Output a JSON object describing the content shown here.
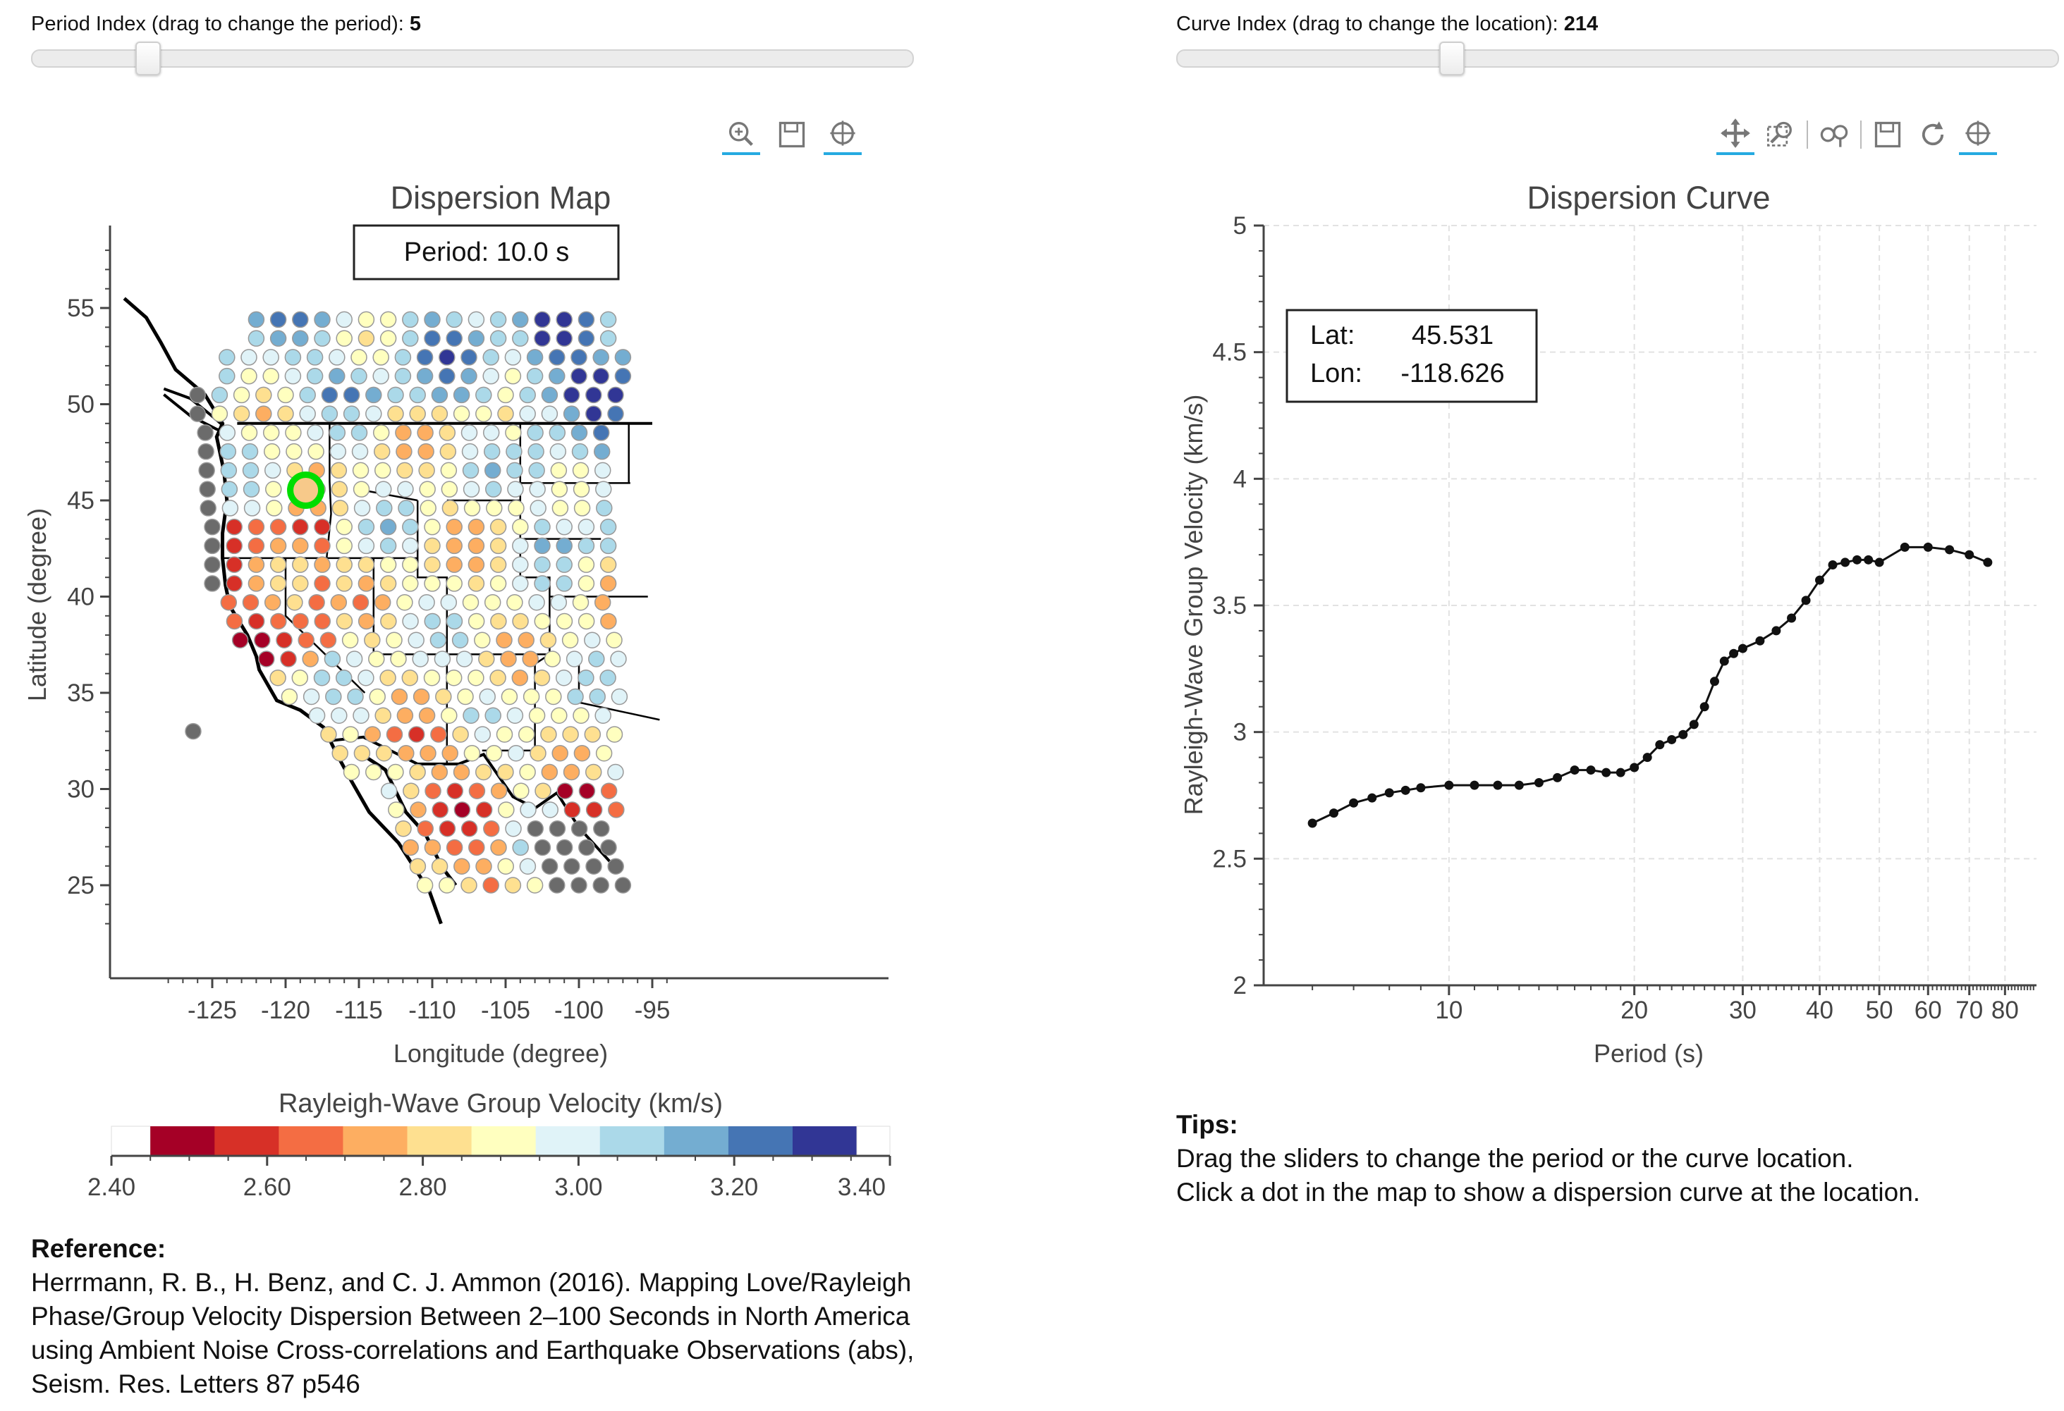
{
  "period_slider": {
    "label": "Period Index (drag to change the period):",
    "value": "5",
    "fraction": 0.13
  },
  "curve_slider": {
    "label": "Curve Index (drag to change the location):",
    "value": "214",
    "fraction": 0.31
  },
  "map_toolbar": [
    "wheel-zoom-icon",
    "save-icon",
    "crosshair-icon"
  ],
  "curve_toolbar": [
    "pan-icon",
    "box-zoom-icon",
    "wheel-zoom-x-icon",
    "save-icon",
    "reset-icon",
    "crosshair-icon"
  ],
  "map": {
    "title": "Dispersion Map",
    "period_box": "Period:   10.0 s",
    "xlabel": "Longitude (degree)",
    "ylabel": "Latitude (degree)",
    "xticks": [
      "-125",
      "-120",
      "-115",
      "-110",
      "-105",
      "-100",
      "-95"
    ],
    "yticks": [
      "25",
      "30",
      "35",
      "40",
      "45",
      "50",
      "55"
    ],
    "selected_color": "#00dd00"
  },
  "colorbar": {
    "title": "Rayleigh-Wave Group Velocity (km/s)",
    "ticks": [
      "2.40",
      "2.60",
      "2.80",
      "3.00",
      "3.20",
      "3.40"
    ],
    "colors": [
      "#a50026",
      "#d73027",
      "#f46d43",
      "#fdae61",
      "#fee090",
      "#ffffbf",
      "#e0f3f8",
      "#abd9e9",
      "#74add1",
      "#4575b4",
      "#313695"
    ]
  },
  "curve": {
    "title": "Dispersion Curve",
    "xlabel": "Period (s)",
    "ylabel": "Rayleigh-Wave Group Velocity (km/s)",
    "lat_label": "Lat:",
    "lat_value": "45.531",
    "lon_label": "Lon:",
    "lon_value": "-118.626",
    "xticks": [
      "10",
      "20",
      "30",
      "40",
      "50",
      "60",
      "70",
      "80"
    ],
    "yticks": [
      "5",
      "4.5",
      "4",
      "3.5",
      "3",
      "2.5",
      "2"
    ]
  },
  "chart_data": {
    "type": "line",
    "title": "Dispersion Curve",
    "xlabel": "Period (s)",
    "ylabel": "Rayleigh-Wave Group Velocity (km/s)",
    "x_scale": "log",
    "xlim": [
      5,
      90
    ],
    "ylim": [
      2,
      5
    ],
    "grid": true,
    "x": [
      6.0,
      6.5,
      7.0,
      7.5,
      8.0,
      8.5,
      9.0,
      10.0,
      11.0,
      12.0,
      13.0,
      14.0,
      15.0,
      16.0,
      17.0,
      18.0,
      19.0,
      20.0,
      21.0,
      22.0,
      23.0,
      24.0,
      25.0,
      26.0,
      27.0,
      28.0,
      29.0,
      30.0,
      32.0,
      34.0,
      36.0,
      38.0,
      40.0,
      42.0,
      44.0,
      46.0,
      48.0,
      50.0,
      55.0,
      60.0,
      65.0,
      70.0,
      75.0
    ],
    "y": [
      2.64,
      2.68,
      2.72,
      2.74,
      2.76,
      2.77,
      2.78,
      2.79,
      2.79,
      2.79,
      2.79,
      2.8,
      2.82,
      2.85,
      2.85,
      2.84,
      2.84,
      2.86,
      2.9,
      2.95,
      2.97,
      2.99,
      3.03,
      3.1,
      3.2,
      3.28,
      3.31,
      3.33,
      3.36,
      3.4,
      3.45,
      3.52,
      3.6,
      3.66,
      3.67,
      3.68,
      3.68,
      3.67,
      3.73,
      3.73,
      3.72,
      3.7,
      3.67
    ]
  }
}
